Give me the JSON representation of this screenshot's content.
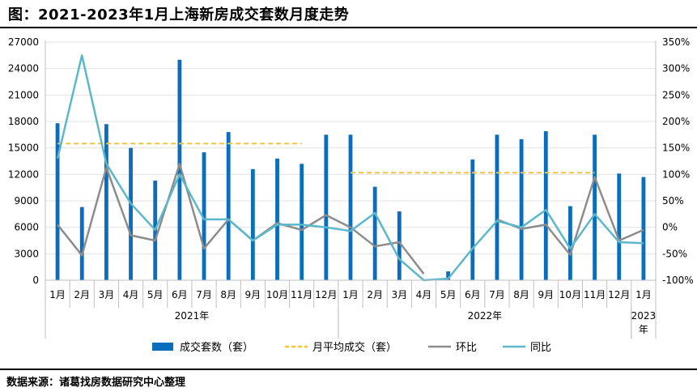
{
  "header": {
    "title": "图：2021-2023年1月上海新房成交套数月度走势",
    "source": "数据来源：诸葛找房数据研究中心整理"
  },
  "colors": {
    "bar": "#0a6ebd",
    "avg": "#f5c242",
    "mom": "#8c8c8c",
    "yoy": "#5bb8cc"
  },
  "chart_data": {
    "type": "bar",
    "categories": [
      "1月",
      "2月",
      "3月",
      "4月",
      "5月",
      "6月",
      "7月",
      "8月",
      "9月",
      "10月",
      "11月",
      "12月",
      "1月",
      "2月",
      "3月",
      "4月",
      "5月",
      "6月",
      "7月",
      "8月",
      "9月",
      "10月",
      "11月",
      "12月",
      "1月"
    ],
    "year_groups": [
      {
        "label": "2021年",
        "start": 0,
        "end": 11
      },
      {
        "label": "2022年",
        "start": 12,
        "end": 23
      },
      {
        "label": "2023年",
        "start": 24,
        "end": 24
      }
    ],
    "y_left": {
      "min": 0,
      "max": 27000,
      "ticks": [
        0,
        3000,
        6000,
        9000,
        12000,
        15000,
        18000,
        21000,
        24000,
        27000
      ]
    },
    "y_right": {
      "min": -100,
      "max": 350,
      "ticks": [
        "-100%",
        "-50%",
        "0%",
        "50%",
        "100%",
        "150%",
        "200%",
        "250%",
        "300%",
        "350%"
      ]
    },
    "series": [
      {
        "name": "成交套数（套）",
        "type": "bar",
        "axis": "left",
        "values": [
          17800,
          8300,
          17700,
          15000,
          11300,
          25000,
          14500,
          16800,
          12600,
          13800,
          13200,
          16500,
          16500,
          10600,
          7800,
          0,
          1000,
          13700,
          16500,
          16000,
          16900,
          8400,
          16500,
          12100,
          11700
        ]
      },
      {
        "name": "月平均成交（套）",
        "type": "line",
        "style": "dashed",
        "axis": "left",
        "values": [
          15500,
          15500,
          15500,
          15500,
          15500,
          15500,
          15500,
          15500,
          15500,
          15500,
          15500,
          null,
          12200,
          12200,
          12200,
          12200,
          12200,
          12200,
          12200,
          12200,
          12200,
          12200,
          12200,
          null,
          null
        ]
      },
      {
        "name": "环比",
        "type": "line",
        "axis": "right",
        "values": [
          5,
          -53,
          113,
          -15,
          -25,
          120,
          -40,
          15,
          -25,
          8,
          -5,
          23,
          0,
          -36,
          -28,
          -88,
          null,
          null,
          15,
          -3,
          5,
          -52,
          95,
          -25,
          -5
        ]
      },
      {
        "name": "同比",
        "type": "line",
        "axis": "right",
        "values": [
          130,
          325,
          120,
          45,
          -5,
          100,
          15,
          15,
          -25,
          5,
          5,
          0,
          -7,
          27,
          -60,
          -100,
          -97,
          -40,
          12,
          0,
          33,
          -40,
          25,
          -28,
          -30
        ]
      }
    ]
  }
}
